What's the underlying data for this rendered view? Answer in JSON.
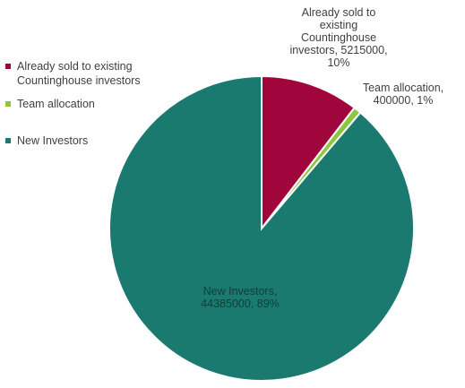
{
  "chart_data": {
    "type": "pie",
    "title": "",
    "slices": [
      {
        "name": "Already sold to existing Countinghouse investors",
        "legend_label": "Already sold to existing\nCountinghouse investors",
        "value": 5215000,
        "percent_label": "10%",
        "color": "#a0063c",
        "data_label": [
          "Already sold to",
          "existing",
          "Countinghouse",
          "investors, 5215000,",
          "10%"
        ]
      },
      {
        "name": "Team allocation",
        "legend_label": "Team allocation",
        "value": 400000,
        "percent_label": "1%",
        "color": "#8dc63f",
        "data_label": [
          "Team allocation,",
          "400000, 1%"
        ]
      },
      {
        "name": "New Investors",
        "legend_label": "New Investors",
        "value": 44385000,
        "percent_label": "89%",
        "color": "#1a7a70",
        "data_label": [
          "New Investors,",
          "44385000, 89%"
        ]
      }
    ],
    "legend_position": "left"
  }
}
